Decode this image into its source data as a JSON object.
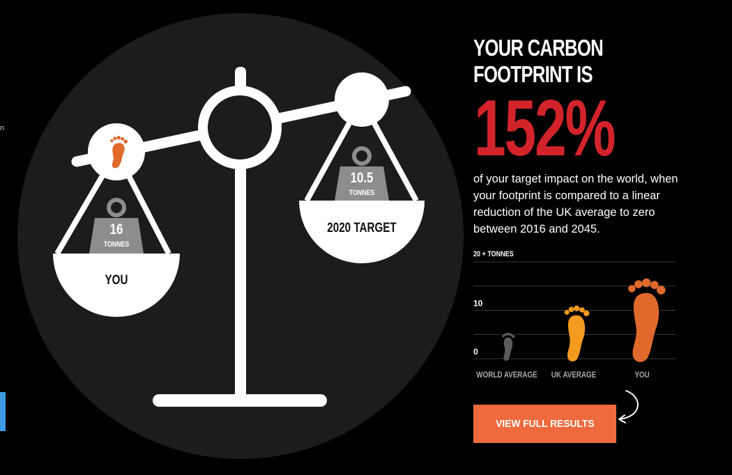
{
  "left_panel": {
    "side_text": "n",
    "pan_you": {
      "weight": "16",
      "unit": "TONNES",
      "label": "YOU",
      "icon": "footprint-icon"
    },
    "pan_target": {
      "weight": "10.5",
      "unit": "TONNES",
      "label": "2020 TARGET"
    }
  },
  "result": {
    "headline_line1": "YOUR CARBON",
    "headline_line2": "FOOTPRINT IS",
    "percent": "152%",
    "description": "of your target impact on the world, when your footprint is compared to a linear reduction of the UK average to zero between 2016 and 2045."
  },
  "chart_data": {
    "type": "bar",
    "scale_label": "20 + TONNES",
    "ytick_labels": [
      "10",
      "0"
    ],
    "categories": [
      "WORLD AVERAGE",
      "UK AVERAGE",
      "YOU"
    ],
    "values": [
      5,
      10.5,
      16
    ],
    "ylim": [
      0,
      20
    ],
    "grid": true,
    "marker": "footprint",
    "colors": [
      "#5b5b5b",
      "#f49a1e",
      "#e06a2c"
    ]
  },
  "cta": {
    "label": "VIEW FULL RESULTS"
  },
  "colors": {
    "accent": "#d2232a",
    "button": "#ee6a3d",
    "you": "#e06a2c",
    "uk": "#f49a1e",
    "world": "#5b5b5b",
    "side_tab": "#3e9be3"
  }
}
